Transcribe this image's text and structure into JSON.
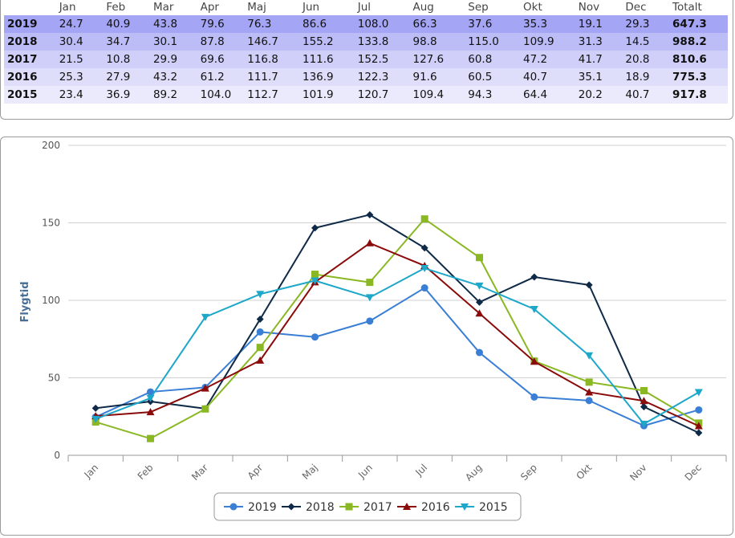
{
  "table": {
    "headers": [
      "",
      "Jan",
      "Feb",
      "Mar",
      "Apr",
      "Maj",
      "Jun",
      "Jul",
      "Aug",
      "Sep",
      "Okt",
      "Nov",
      "Dec",
      "Totalt"
    ],
    "rows": [
      {
        "year": "2019",
        "values": [
          "24.7",
          "40.9",
          "43.8",
          "79.6",
          "76.3",
          "86.6",
          "108.0",
          "66.3",
          "37.6",
          "35.3",
          "19.1",
          "29.3"
        ],
        "total": "647.3"
      },
      {
        "year": "2018",
        "values": [
          "30.4",
          "34.7",
          "30.1",
          "87.8",
          "146.7",
          "155.2",
          "133.8",
          "98.8",
          "115.0",
          "109.9",
          "31.3",
          "14.5"
        ],
        "total": "988.2"
      },
      {
        "year": "2017",
        "values": [
          "21.5",
          "10.8",
          "29.9",
          "69.6",
          "116.8",
          "111.6",
          "152.5",
          "127.6",
          "60.8",
          "47.2",
          "41.7",
          "20.8"
        ],
        "total": "810.6"
      },
      {
        "year": "2016",
        "values": [
          "25.3",
          "27.9",
          "43.2",
          "61.2",
          "111.7",
          "136.9",
          "122.3",
          "91.6",
          "60.5",
          "40.7",
          "35.1",
          "18.9"
        ],
        "total": "775.3"
      },
      {
        "year": "2015",
        "values": [
          "23.4",
          "36.9",
          "89.2",
          "104.0",
          "112.7",
          "101.9",
          "120.7",
          "109.4",
          "94.3",
          "64.4",
          "20.2",
          "40.7"
        ],
        "total": "917.8"
      }
    ]
  },
  "chart_data": {
    "type": "line",
    "categories": [
      "Jan",
      "Feb",
      "Mar",
      "Apr",
      "Maj",
      "Jun",
      "Jul",
      "Aug",
      "Sep",
      "Okt",
      "Nov",
      "Dec"
    ],
    "ylabel": "Flygtid",
    "ylim": [
      0,
      200
    ],
    "yticks": [
      0,
      50,
      100,
      150,
      200
    ],
    "grid": true,
    "legend_placement": "bottom-center",
    "series": [
      {
        "name": "2019",
        "color": "#3a7fd5",
        "marker": "circle",
        "values": [
          24.7,
          40.9,
          43.8,
          79.6,
          76.3,
          86.6,
          108.0,
          66.3,
          37.6,
          35.3,
          19.1,
          29.3
        ]
      },
      {
        "name": "2018",
        "color": "#0e2a47",
        "marker": "diamond",
        "values": [
          30.4,
          34.7,
          30.1,
          87.8,
          146.7,
          155.2,
          133.8,
          98.8,
          115.0,
          109.9,
          31.3,
          14.5
        ]
      },
      {
        "name": "2017",
        "color": "#8ab822",
        "marker": "square",
        "values": [
          21.5,
          10.8,
          29.9,
          69.6,
          116.8,
          111.6,
          152.5,
          127.6,
          60.8,
          47.2,
          41.7,
          20.8
        ]
      },
      {
        "name": "2016",
        "color": "#8b0a0a",
        "marker": "triangle",
        "values": [
          25.3,
          27.9,
          43.2,
          61.2,
          111.7,
          136.9,
          122.3,
          91.6,
          60.5,
          40.7,
          35.1,
          18.9
        ]
      },
      {
        "name": "2015",
        "color": "#1da7c9",
        "marker": "triangle-down",
        "values": [
          23.4,
          36.9,
          89.2,
          104.0,
          112.7,
          101.9,
          120.7,
          109.4,
          94.3,
          64.4,
          20.2,
          40.7
        ]
      }
    ]
  }
}
